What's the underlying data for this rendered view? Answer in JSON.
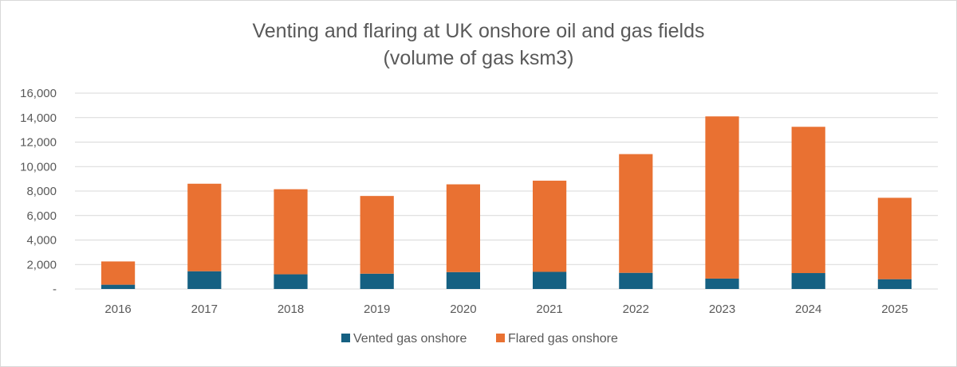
{
  "chart_data": {
    "type": "bar",
    "stacked": true,
    "title": "Venting and flaring at UK onshore oil and gas fields",
    "subtitle": "(volume of gas ksm3)",
    "categories": [
      "2016",
      "2017",
      "2018",
      "2019",
      "2020",
      "2021",
      "2022",
      "2023",
      "2024",
      "2025"
    ],
    "series": [
      {
        "name": "Vented gas onshore",
        "color": "#156082",
        "values": [
          350,
          1450,
          1200,
          1250,
          1380,
          1400,
          1320,
          850,
          1300,
          800
        ]
      },
      {
        "name": "Flared gas onshore",
        "color": "#E97132",
        "values": [
          1900,
          7150,
          6950,
          6350,
          7170,
          7450,
          9700,
          13250,
          11950,
          6650
        ]
      }
    ],
    "ylim": [
      0,
      16000
    ],
    "yticks": [
      0,
      2000,
      4000,
      6000,
      8000,
      10000,
      12000,
      14000,
      16000
    ],
    "ytick_labels": [
      "-",
      "2,000",
      "4,000",
      "6,000",
      "8,000",
      "10,000",
      "12,000",
      "14,000",
      "16,000"
    ],
    "xlabel": "",
    "ylabel": "",
    "grid": true,
    "legend_position": "bottom"
  }
}
